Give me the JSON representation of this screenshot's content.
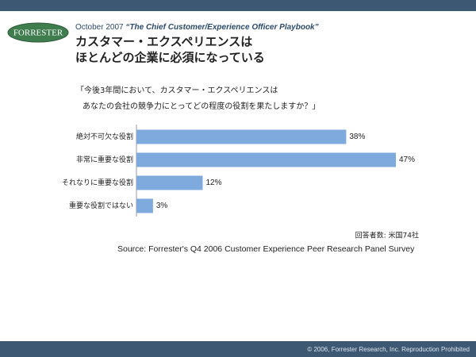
{
  "logo": "FORRESTER",
  "date": "October 2007",
  "report": "“The Chief Customer/Experience Officer Playbook”",
  "footer": "© 2006, Forrester Research, Inc. Reproduction Prohibited",
  "chart_data": {
    "type": "hbar",
    "title": [
      "カスタマー・エクスペリエンスは",
      "ほとんどの企業に必須になっている"
    ],
    "question": [
      "「今後3年間において、カスタマー・エクスペリエンスは",
      "あなたの会社の競争力にとってどの程度の役割を果たしますか？」"
    ],
    "categories": [
      "絶対不可欠な役割",
      "非常に重要な役割",
      "それなりに重要な役割",
      "重要な役割ではない"
    ],
    "values": [
      38,
      47,
      12,
      3
    ],
    "value_labels": [
      "38%",
      "47%",
      "12%",
      "3%"
    ],
    "color": "#7eaade",
    "note": "回答者数: 米国74社",
    "source": "Source: Forrester's Q4 2006 Customer Experience Peer Research Panel Survey"
  }
}
